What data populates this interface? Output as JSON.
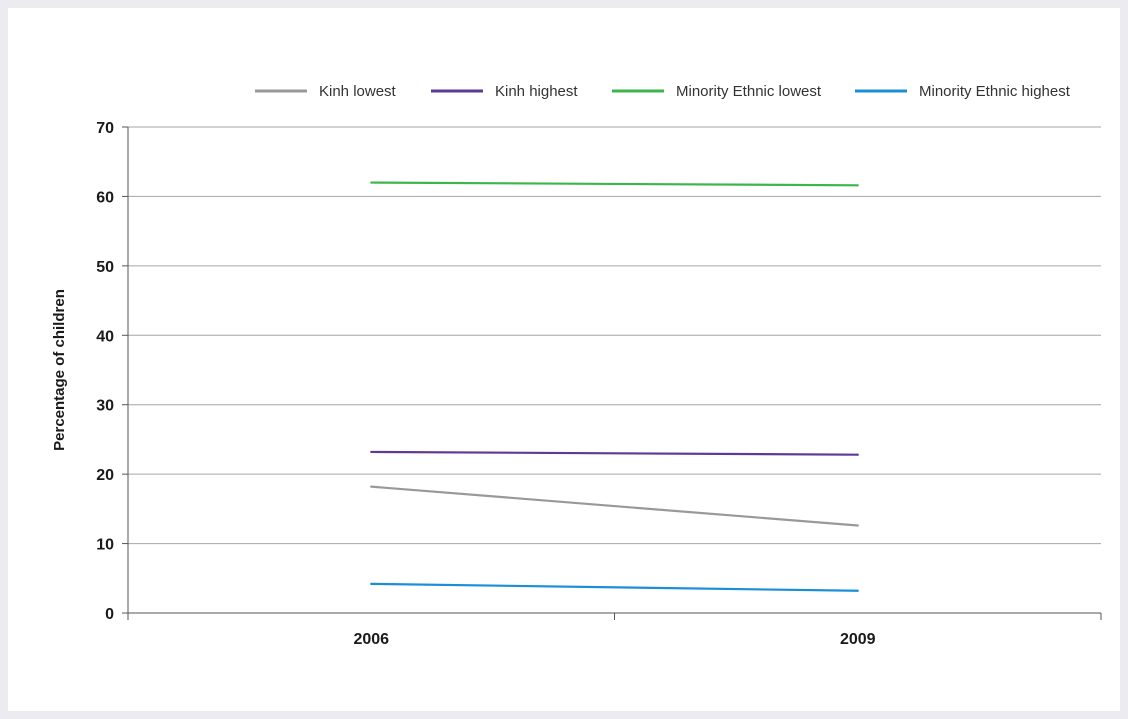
{
  "chart_data": {
    "type": "line",
    "title": "",
    "xlabel": "",
    "ylabel": "Percentage of children",
    "categories": [
      "2006",
      "2009"
    ],
    "ylim": [
      0,
      70
    ],
    "yticks": [
      "0",
      "10",
      "20",
      "30",
      "40",
      "50",
      "60",
      "70"
    ],
    "grid": true,
    "legend_position": "top-right",
    "series": [
      {
        "name": "Kinh lowest",
        "color": "#999999",
        "values": [
          18.2,
          12.6
        ]
      },
      {
        "name": "Kinh highest",
        "color": "#5c3a96",
        "values": [
          23.2,
          22.8
        ]
      },
      {
        "name": "Minority Ethnic lowest",
        "color": "#3db54a",
        "values": [
          62.0,
          61.6
        ]
      },
      {
        "name": "Minority Ethnic highest",
        "color": "#1b8fd6",
        "values": [
          4.2,
          3.2
        ]
      }
    ]
  }
}
